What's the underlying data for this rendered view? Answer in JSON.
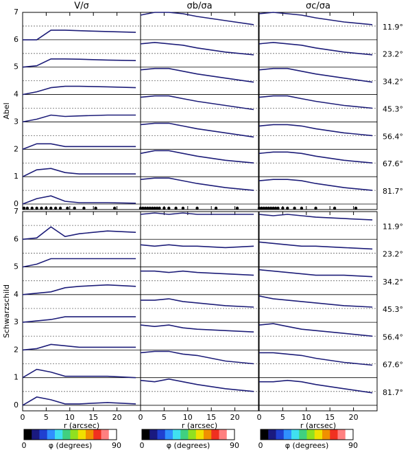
{
  "chart_data": [
    {
      "type": "line",
      "title": "V/σ",
      "y_label": "Abel",
      "color": "#1c1c78",
      "x": [
        0,
        3,
        6,
        9,
        12,
        18,
        24
      ],
      "xlim": [
        0,
        25
      ],
      "xticks": [
        0,
        5,
        10,
        15,
        20
      ],
      "xtick_labels": false,
      "ylim": [
        -0.2,
        7
      ],
      "yticks": [
        0,
        1,
        2,
        3,
        4,
        5,
        6,
        7
      ],
      "ytick_labels": true,
      "minor_yticks": [
        0.5,
        1.5,
        2.5,
        3.5,
        4.5,
        5.5,
        6.5
      ],
      "bins_r": [
        0.3,
        1,
        2,
        3,
        4,
        5,
        6,
        7,
        8,
        9.5,
        11,
        13,
        15.5,
        19.5
      ],
      "series": [
        {
          "values": [
            6.0,
            6.0,
            6.35,
            6.35,
            6.33,
            6.3,
            6.27
          ]
        },
        {
          "values": [
            5.0,
            5.05,
            5.3,
            5.3,
            5.29,
            5.26,
            5.24
          ]
        },
        {
          "values": [
            4.0,
            4.1,
            4.25,
            4.3,
            4.3,
            4.28,
            4.25
          ]
        },
        {
          "values": [
            3.0,
            3.1,
            3.25,
            3.2,
            3.22,
            3.25,
            3.25
          ]
        },
        {
          "values": [
            2.0,
            2.2,
            2.2,
            2.1,
            2.1,
            2.1,
            2.1
          ]
        },
        {
          "values": [
            1.0,
            1.25,
            1.3,
            1.15,
            1.1,
            1.1,
            1.1
          ]
        },
        {
          "values": [
            0.0,
            0.2,
            0.3,
            0.1,
            0.05,
            0.05,
            0.03
          ]
        }
      ]
    },
    {
      "type": "line",
      "title": "σb/σa",
      "color": "#1c1c78",
      "x": [
        0,
        3,
        6,
        9,
        12,
        18,
        24
      ],
      "xlim": [
        0,
        25
      ],
      "xticks": [
        0,
        5,
        10,
        15,
        20
      ],
      "xtick_labels": false,
      "ylim": [
        -0.2,
        7
      ],
      "yticks": [
        0,
        1,
        2,
        3,
        4,
        5,
        6,
        7
      ],
      "ytick_labels": false,
      "minor_yticks": [
        0.5,
        1.5,
        2.5,
        3.5,
        4.5,
        5.5,
        6.5
      ],
      "bins_r": [
        0,
        0.5,
        1,
        1.5,
        2,
        2.5,
        3,
        3.5,
        4,
        5,
        6,
        7.5,
        9,
        12,
        16,
        20.5
      ],
      "series": [
        {
          "values": [
            6.9,
            7.0,
            7.0,
            6.95,
            6.85,
            6.7,
            6.55
          ]
        },
        {
          "values": [
            5.85,
            5.9,
            5.85,
            5.8,
            5.7,
            5.55,
            5.45
          ]
        },
        {
          "values": [
            4.9,
            4.95,
            4.95,
            4.85,
            4.75,
            4.6,
            4.45
          ]
        },
        {
          "values": [
            3.9,
            3.95,
            3.95,
            3.85,
            3.75,
            3.6,
            3.45
          ]
        },
        {
          "values": [
            2.9,
            2.95,
            2.95,
            2.85,
            2.75,
            2.6,
            2.45
          ]
        },
        {
          "values": [
            1.85,
            1.95,
            1.95,
            1.85,
            1.75,
            1.6,
            1.5
          ]
        },
        {
          "values": [
            0.9,
            0.95,
            0.95,
            0.85,
            0.75,
            0.6,
            0.5
          ]
        }
      ]
    },
    {
      "type": "line",
      "title": "σc/σa",
      "color": "#1c1c78",
      "x": [
        0,
        3,
        6,
        9,
        12,
        18,
        24
      ],
      "xlim": [
        0,
        25
      ],
      "xticks": [
        0,
        5,
        10,
        15,
        20
      ],
      "xtick_labels": false,
      "ylim": [
        -0.2,
        7
      ],
      "yticks": [
        0,
        1,
        2,
        3,
        4,
        5,
        6,
        7
      ],
      "ytick_labels": false,
      "minor_yticks": [
        0.5,
        1.5,
        2.5,
        3.5,
        4.5,
        5.5,
        6.5
      ],
      "bins_r": [
        0,
        0.5,
        1,
        1.5,
        2,
        2.5,
        3,
        3.5,
        4,
        5,
        6,
        7.5,
        9,
        12,
        16,
        20.5
      ],
      "row_labels": [
        "11.9°",
        "23.2°",
        "34.2°",
        "45.3°",
        "56.4°",
        "67.6°",
        "81.7°"
      ],
      "series": [
        {
          "values": [
            6.95,
            7.0,
            6.95,
            6.9,
            6.8,
            6.65,
            6.55
          ]
        },
        {
          "values": [
            5.85,
            5.9,
            5.85,
            5.8,
            5.7,
            5.55,
            5.45
          ]
        },
        {
          "values": [
            4.9,
            4.95,
            4.95,
            4.85,
            4.75,
            4.6,
            4.45
          ]
        },
        {
          "values": [
            3.9,
            3.95,
            3.95,
            3.85,
            3.75,
            3.6,
            3.5
          ]
        },
        {
          "values": [
            2.85,
            2.9,
            2.9,
            2.85,
            2.75,
            2.6,
            2.5
          ]
        },
        {
          "values": [
            1.85,
            1.9,
            1.9,
            1.85,
            1.75,
            1.6,
            1.5
          ]
        },
        {
          "values": [
            0.85,
            0.9,
            0.9,
            0.85,
            0.75,
            0.6,
            0.5
          ]
        }
      ]
    },
    {
      "type": "line",
      "y_label": "Schwarzschild",
      "x_label": "r (arcsec)",
      "color": "#1c1c78",
      "x": [
        0,
        3,
        6,
        9,
        12,
        18,
        24
      ],
      "xlim": [
        0,
        25
      ],
      "xticks": [
        0,
        5,
        10,
        15,
        20
      ],
      "xtick_labels": true,
      "ylim": [
        -0.2,
        7
      ],
      "yticks": [
        0,
        1,
        2,
        3,
        4,
        5,
        6,
        7
      ],
      "ytick_labels": true,
      "minor_yticks": [
        0.5,
        1.5,
        2.5,
        3.5,
        4.5,
        5.5,
        6.5
      ],
      "colorbar": {
        "label": "φ (degrees)",
        "ticks": [
          0,
          90
        ],
        "colors": [
          "#000000",
          "#1a1a80",
          "#2040d0",
          "#3090ff",
          "#40e0f0",
          "#40d080",
          "#90e020",
          "#f0e000",
          "#f09000",
          "#f03020",
          "#ff8080",
          "#ffffff"
        ]
      },
      "series": [
        {
          "values": [
            6.0,
            6.05,
            6.45,
            6.1,
            6.2,
            6.3,
            6.25
          ]
        },
        {
          "values": [
            5.0,
            5.1,
            5.3,
            5.3,
            5.3,
            5.3,
            5.3
          ]
        },
        {
          "values": [
            4.0,
            4.05,
            4.1,
            4.25,
            4.3,
            4.35,
            4.3
          ]
        },
        {
          "values": [
            3.0,
            3.05,
            3.1,
            3.2,
            3.2,
            3.2,
            3.2
          ]
        },
        {
          "values": [
            2.0,
            2.05,
            2.2,
            2.15,
            2.1,
            2.1,
            2.1
          ]
        },
        {
          "values": [
            1.0,
            1.3,
            1.2,
            1.05,
            1.05,
            1.05,
            1.0
          ]
        },
        {
          "values": [
            0.0,
            0.3,
            0.2,
            0.05,
            0.05,
            0.1,
            0.05
          ]
        }
      ]
    },
    {
      "type": "line",
      "x_label": "r (arcsec)",
      "color": "#1c1c78",
      "x": [
        0,
        3,
        6,
        9,
        12,
        18,
        24
      ],
      "xlim": [
        0,
        25
      ],
      "xticks": [
        0,
        5,
        10,
        15,
        20
      ],
      "xtick_labels": true,
      "ylim": [
        -0.2,
        7
      ],
      "yticks": [
        0,
        1,
        2,
        3,
        4,
        5,
        6,
        7
      ],
      "ytick_labels": false,
      "minor_yticks": [
        0.5,
        1.5,
        2.5,
        3.5,
        4.5,
        5.5,
        6.5
      ],
      "colorbar": {
        "label": "φ (degrees)",
        "ticks": [
          0,
          90
        ],
        "colors": [
          "#000000",
          "#1a1a80",
          "#2040d0",
          "#3090ff",
          "#40e0f0",
          "#40d080",
          "#90e020",
          "#f0e000",
          "#f09000",
          "#f03020",
          "#ff8080",
          "#ffffff"
        ]
      },
      "series": [
        {
          "values": [
            6.9,
            6.95,
            6.9,
            6.95,
            6.9,
            6.9,
            6.9
          ]
        },
        {
          "values": [
            5.8,
            5.75,
            5.8,
            5.75,
            5.75,
            5.7,
            5.75
          ]
        },
        {
          "values": [
            4.85,
            4.85,
            4.8,
            4.85,
            4.8,
            4.75,
            4.7
          ]
        },
        {
          "values": [
            3.8,
            3.8,
            3.85,
            3.75,
            3.7,
            3.6,
            3.55
          ]
        },
        {
          "values": [
            2.9,
            2.85,
            2.9,
            2.8,
            2.75,
            2.7,
            2.65
          ]
        },
        {
          "values": [
            1.9,
            1.95,
            1.95,
            1.85,
            1.8,
            1.6,
            1.5
          ]
        },
        {
          "values": [
            0.9,
            0.85,
            0.95,
            0.85,
            0.75,
            0.6,
            0.5
          ]
        }
      ]
    },
    {
      "type": "line",
      "x_label": "r (arcsec)",
      "color": "#1c1c78",
      "x": [
        0,
        3,
        6,
        9,
        12,
        18,
        24
      ],
      "xlim": [
        0,
        25
      ],
      "xticks": [
        0,
        5,
        10,
        15,
        20
      ],
      "xtick_labels": true,
      "ylim": [
        -0.2,
        7
      ],
      "yticks": [
        0,
        1,
        2,
        3,
        4,
        5,
        6,
        7
      ],
      "ytick_labels": false,
      "minor_yticks": [
        0.5,
        1.5,
        2.5,
        3.5,
        4.5,
        5.5,
        6.5
      ],
      "row_labels": [
        "11.9°",
        "23.2°",
        "34.2°",
        "45.3°",
        "56.4°",
        "67.6°",
        "81.7°"
      ],
      "colorbar": {
        "label": "φ (degrees)",
        "ticks": [
          0,
          90
        ],
        "colors": [
          "#000000",
          "#1a1a80",
          "#2040d0",
          "#3090ff",
          "#40e0f0",
          "#40d080",
          "#90e020",
          "#f0e000",
          "#f09000",
          "#f03020",
          "#ff8080",
          "#ffffff"
        ]
      },
      "series": [
        {
          "values": [
            6.9,
            6.85,
            6.9,
            6.85,
            6.8,
            6.75,
            6.7
          ]
        },
        {
          "values": [
            5.9,
            5.85,
            5.8,
            5.75,
            5.75,
            5.7,
            5.65
          ]
        },
        {
          "values": [
            4.9,
            4.85,
            4.8,
            4.75,
            4.7,
            4.7,
            4.65
          ]
        },
        {
          "values": [
            3.95,
            3.85,
            3.8,
            3.75,
            3.7,
            3.6,
            3.55
          ]
        },
        {
          "values": [
            2.9,
            2.95,
            2.85,
            2.75,
            2.7,
            2.6,
            2.5
          ]
        },
        {
          "values": [
            1.9,
            1.9,
            1.85,
            1.8,
            1.7,
            1.55,
            1.45
          ]
        },
        {
          "values": [
            0.85,
            0.85,
            0.9,
            0.85,
            0.75,
            0.6,
            0.45
          ]
        }
      ]
    }
  ]
}
